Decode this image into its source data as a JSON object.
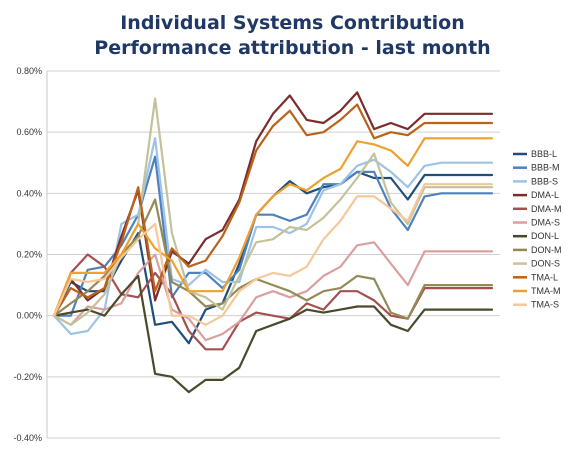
{
  "chart_data": {
    "type": "line",
    "title": "Individual Systems Contribution",
    "subtitle": "Performance attribution - last month",
    "xlabel": "",
    "ylabel": "",
    "ylim": [
      -0.004,
      0.008
    ],
    "yticks": [
      -0.004,
      -0.002,
      0.0,
      0.002,
      0.004,
      0.006,
      0.008
    ],
    "ytick_labels": [
      "-0.40%",
      "-0.20%",
      "0.00%",
      "0.20%",
      "0.40%",
      "0.60%",
      "0.80%"
    ],
    "grid": "horizontal",
    "legend": "right",
    "x": [
      1,
      2,
      3,
      4,
      5,
      6,
      7,
      8,
      9,
      10,
      11,
      12,
      13,
      14,
      15,
      16,
      17,
      18,
      19,
      20,
      21,
      22,
      23,
      24,
      25,
      26,
      27
    ],
    "series": [
      {
        "name": "BBB-L",
        "color": "#1f4e79",
        "values": [
          0.0,
          0.0011,
          0.0008,
          0.0008,
          0.0018,
          0.0027,
          -0.0003,
          -0.0002,
          -0.0009,
          0.0002,
          0.0004,
          0.0017,
          0.0033,
          0.0039,
          0.0044,
          0.004,
          0.0042,
          0.0043,
          0.0047,
          0.0045,
          0.0045,
          0.0038,
          0.0046,
          0.0046,
          0.0046,
          0.0046,
          0.0046
        ]
      },
      {
        "name": "BBB-M",
        "color": "#4f81bd",
        "values": [
          0.0,
          0.0,
          0.0015,
          0.0016,
          0.0023,
          0.0033,
          0.0052,
          0.0006,
          0.0014,
          0.0014,
          0.0009,
          0.0015,
          0.0033,
          0.0033,
          0.0031,
          0.0033,
          0.0043,
          0.0043,
          0.0047,
          0.0047,
          0.0035,
          0.0028,
          0.0039,
          0.004,
          0.004,
          0.004,
          0.004
        ]
      },
      {
        "name": "BBB-S",
        "color": "#9dc3e6",
        "values": [
          0.0,
          -0.0006,
          -0.0005,
          0.0002,
          0.003,
          0.0033,
          0.0058,
          0.0012,
          0.001,
          0.0015,
          0.0011,
          0.0011,
          0.0029,
          0.0029,
          0.0027,
          0.003,
          0.0041,
          0.0043,
          0.0049,
          0.0051,
          0.0047,
          0.0042,
          0.0049,
          0.005,
          0.005,
          0.005,
          0.005
        ]
      },
      {
        "name": "DMA-L",
        "color": "#7b2c2c",
        "values": [
          0.0,
          0.0012,
          0.0005,
          0.0009,
          0.0026,
          0.0041,
          0.0005,
          0.0021,
          0.0017,
          0.0025,
          0.0028,
          0.0038,
          0.0057,
          0.0066,
          0.0072,
          0.0064,
          0.0063,
          0.0067,
          0.0073,
          0.0061,
          0.0063,
          0.0061,
          0.0066,
          0.0066,
          0.0066,
          0.0066,
          0.0066
        ]
      },
      {
        "name": "DMA-M",
        "color": "#a5504f",
        "values": [
          0.0,
          0.0014,
          0.002,
          0.0016,
          0.0007,
          0.0006,
          0.0014,
          0.0007,
          -0.0005,
          -0.0011,
          -0.0011,
          -0.0002,
          0.0001,
          0.0,
          -0.0001,
          0.0004,
          0.0002,
          0.0008,
          0.0008,
          0.0005,
          0.0,
          -0.0001,
          0.0009,
          0.0009,
          0.0009,
          0.0009,
          0.0009
        ]
      },
      {
        "name": "DMA-S",
        "color": "#d9a0a0",
        "values": [
          0.0,
          -0.0003,
          0.0003,
          0.0002,
          0.0004,
          0.0014,
          0.002,
          0.0002,
          -0.0001,
          -0.0008,
          -0.0006,
          -0.0002,
          0.0006,
          0.0008,
          0.0006,
          0.0008,
          0.0013,
          0.0016,
          0.0023,
          0.0024,
          0.0017,
          0.001,
          0.0021,
          0.0021,
          0.0021,
          0.0021,
          0.0021
        ]
      },
      {
        "name": "DON-L",
        "color": "#4a4a2a",
        "values": [
          0.0,
          0.0001,
          0.0002,
          0.0,
          0.0007,
          0.0013,
          -0.0019,
          -0.002,
          -0.0025,
          -0.0021,
          -0.0021,
          -0.0017,
          -0.0005,
          -0.0003,
          -0.0001,
          0.0002,
          0.0001,
          0.0002,
          0.0003,
          0.0003,
          -0.0003,
          -0.0005,
          0.0002,
          0.0002,
          0.0002,
          0.0002,
          0.0002
        ]
      },
      {
        "name": "DON-M",
        "color": "#948a54",
        "values": [
          0.0,
          0.0004,
          0.0008,
          0.0013,
          0.002,
          0.0026,
          0.0038,
          0.0011,
          0.0008,
          0.0003,
          0.0004,
          0.0009,
          0.0012,
          0.001,
          0.0008,
          0.0005,
          0.0008,
          0.0009,
          0.0013,
          0.0012,
          0.0001,
          -0.0001,
          0.001,
          0.001,
          0.001,
          0.001,
          0.001
        ]
      },
      {
        "name": "DON-S",
        "color": "#c4c29a",
        "values": [
          0.0,
          -0.0003,
          0.0001,
          0.0007,
          0.002,
          0.003,
          0.0071,
          0.0027,
          0.0008,
          0.0006,
          0.0002,
          0.0013,
          0.0024,
          0.0025,
          0.0029,
          0.0028,
          0.0032,
          0.0038,
          0.0045,
          0.0053,
          0.0037,
          0.003,
          0.0042,
          0.0042,
          0.0042,
          0.0042,
          0.0042
        ]
      },
      {
        "name": "TMA-L",
        "color": "#b9631a",
        "values": [
          0.0,
          0.0009,
          0.0006,
          0.0009,
          0.0024,
          0.0042,
          0.0008,
          0.0022,
          0.0016,
          0.0018,
          0.0026,
          0.0037,
          0.0054,
          0.0062,
          0.0067,
          0.0059,
          0.006,
          0.0064,
          0.0069,
          0.0058,
          0.006,
          0.0059,
          0.0063,
          0.0063,
          0.0063,
          0.0063,
          0.0063
        ]
      },
      {
        "name": "TMA-M",
        "color": "#f0a030",
        "values": [
          0.0,
          0.0014,
          0.0014,
          0.0014,
          0.002,
          0.003,
          0.0022,
          0.0018,
          0.0008,
          0.0008,
          0.0008,
          0.0019,
          0.0033,
          0.0039,
          0.0043,
          0.0041,
          0.0045,
          0.0048,
          0.0057,
          0.0056,
          0.0054,
          0.0049,
          0.0058,
          0.0058,
          0.0058,
          0.0058,
          0.0058
        ]
      },
      {
        "name": "TMA-S",
        "color": "#f5c89a",
        "values": [
          0.0,
          0.0012,
          0.0011,
          0.0012,
          0.0019,
          0.0025,
          0.003,
          0.0,
          0.0,
          -0.0003,
          0.0,
          0.0008,
          0.0012,
          0.0014,
          0.0013,
          0.0016,
          0.0025,
          0.0031,
          0.0039,
          0.0039,
          0.0035,
          0.0031,
          0.0043,
          0.0043,
          0.0043,
          0.0043,
          0.0043
        ]
      }
    ]
  }
}
